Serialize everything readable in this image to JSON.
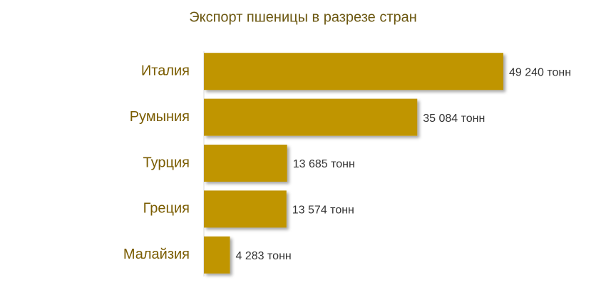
{
  "chart_data": {
    "type": "bar",
    "orientation": "horizontal",
    "title": "Экспорт пшеницы в разрезе стран",
    "categories": [
      "Италия",
      "Румыния",
      "Турция",
      "Греция",
      "Малайзия"
    ],
    "values": [
      49240,
      35084,
      13685,
      13574,
      4283
    ],
    "value_labels": [
      "49 240 тонн",
      "35 084 тонн",
      "13 685 тонн",
      "13 574 тонн",
      "4 283 тонн"
    ],
    "color": "#c09500"
  }
}
